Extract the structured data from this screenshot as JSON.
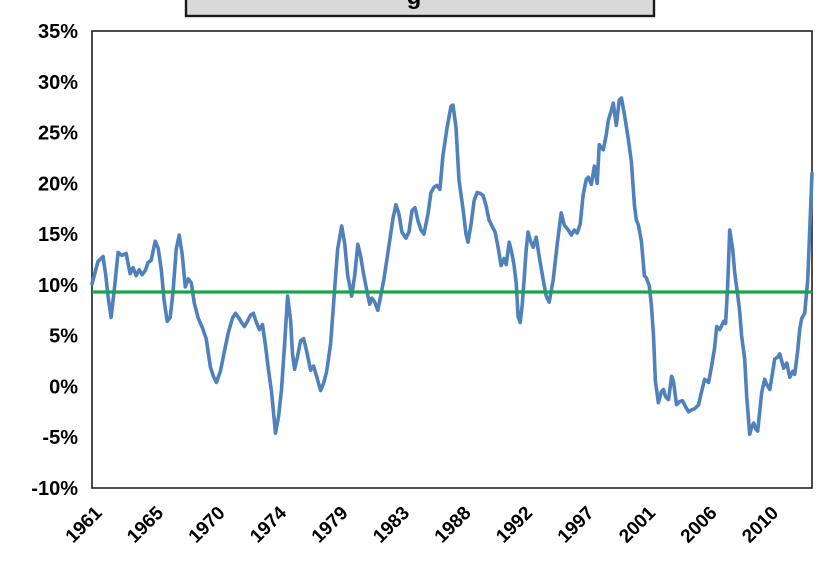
{
  "title_box": {
    "visible_text_fragment": "g",
    "fill": "#d9d9d9",
    "border_color": "#1a1a1a"
  },
  "colors": {
    "series_line": "#4f81bd",
    "mean_line": "#1aa44c",
    "plot_border": "#1f1f1f",
    "label_text": "#000000",
    "background": "#ffffff"
  },
  "chart_data": {
    "type": "line",
    "title": "",
    "xlabel": "",
    "ylabel": "",
    "grid": false,
    "legend": "none",
    "y_axis": {
      "tick_labels": [
        "35%",
        "30%",
        "25%",
        "20%",
        "15%",
        "10%",
        "5%",
        "0%",
        "-5%",
        "-10%"
      ],
      "min": -10,
      "max": 35,
      "step": 5,
      "unit": "%"
    },
    "x_axis": {
      "tick_labels": [
        "1961",
        "1965",
        "1970",
        "1974",
        "1979",
        "1983",
        "1988",
        "1992",
        "1997",
        "2001",
        "2006",
        "2010"
      ],
      "range": [
        1961,
        2013.5
      ],
      "label_rotation_deg": -45
    },
    "reference_line": {
      "name": "mean-line",
      "value": 9.3,
      "color": "#1aa44c"
    },
    "series": [
      {
        "name": "growth-rate-series",
        "color": "#4f81bd",
        "points": [
          [
            1961.0,
            10.1
          ],
          [
            1961.44,
            12.3
          ],
          [
            1961.8,
            12.8
          ],
          [
            1962.0,
            11.0
          ],
          [
            1962.17,
            8.9
          ],
          [
            1962.39,
            6.8
          ],
          [
            1962.65,
            9.8
          ],
          [
            1962.9,
            13.2
          ],
          [
            1963.19,
            12.9
          ],
          [
            1963.49,
            13.1
          ],
          [
            1963.78,
            11.1
          ],
          [
            1964.0,
            11.7
          ],
          [
            1964.22,
            10.9
          ],
          [
            1964.44,
            11.5
          ],
          [
            1964.66,
            11.0
          ],
          [
            1964.88,
            11.4
          ],
          [
            1965.09,
            12.2
          ],
          [
            1965.31,
            12.4
          ],
          [
            1965.61,
            14.3
          ],
          [
            1965.83,
            13.6
          ],
          [
            1966.05,
            11.5
          ],
          [
            1966.26,
            8.5
          ],
          [
            1966.48,
            6.4
          ],
          [
            1966.7,
            6.8
          ],
          [
            1966.92,
            9.5
          ],
          [
            1967.14,
            13.5
          ],
          [
            1967.36,
            14.9
          ],
          [
            1967.58,
            13.0
          ],
          [
            1967.8,
            9.8
          ],
          [
            1968.02,
            10.6
          ],
          [
            1968.24,
            10.2
          ],
          [
            1968.46,
            8.2
          ],
          [
            1968.75,
            6.7
          ],
          [
            1969.04,
            5.8
          ],
          [
            1969.33,
            4.7
          ],
          [
            1969.63,
            1.9
          ],
          [
            1969.85,
            1.0
          ],
          [
            1970.07,
            0.4
          ],
          [
            1970.36,
            1.5
          ],
          [
            1970.65,
            3.4
          ],
          [
            1970.94,
            5.3
          ],
          [
            1971.24,
            6.7
          ],
          [
            1971.46,
            7.2
          ],
          [
            1971.68,
            6.8
          ],
          [
            1971.9,
            6.3
          ],
          [
            1972.11,
            5.9
          ],
          [
            1972.33,
            6.4
          ],
          [
            1972.55,
            7.0
          ],
          [
            1972.77,
            7.2
          ],
          [
            1972.99,
            6.3
          ],
          [
            1973.21,
            5.6
          ],
          [
            1973.43,
            6.1
          ],
          [
            1973.65,
            4.0
          ],
          [
            1973.87,
            1.6
          ],
          [
            1974.09,
            -0.5
          ],
          [
            1974.38,
            -4.6
          ],
          [
            1974.6,
            -3.0
          ],
          [
            1974.82,
            -0.3
          ],
          [
            1975.04,
            4.0
          ],
          [
            1975.26,
            8.9
          ],
          [
            1975.48,
            6.5
          ],
          [
            1975.62,
            3.2
          ],
          [
            1975.77,
            1.7
          ],
          [
            1975.99,
            3.0
          ],
          [
            1976.21,
            4.5
          ],
          [
            1976.43,
            4.7
          ],
          [
            1976.65,
            3.5
          ],
          [
            1976.94,
            1.6
          ],
          [
            1977.16,
            2.0
          ],
          [
            1977.38,
            1.0
          ],
          [
            1977.67,
            -0.4
          ],
          [
            1977.89,
            0.3
          ],
          [
            1978.11,
            1.5
          ],
          [
            1978.4,
            4.2
          ],
          [
            1978.69,
            9.5
          ],
          [
            1978.91,
            13.5
          ],
          [
            1979.21,
            15.8
          ],
          [
            1979.43,
            14.0
          ],
          [
            1979.64,
            11.0
          ],
          [
            1979.94,
            8.9
          ],
          [
            1980.16,
            11.0
          ],
          [
            1980.38,
            14.0
          ],
          [
            1980.59,
            12.8
          ],
          [
            1980.81,
            11.0
          ],
          [
            1981.03,
            9.5
          ],
          [
            1981.25,
            8.1
          ],
          [
            1981.4,
            8.7
          ],
          [
            1981.62,
            8.3
          ],
          [
            1981.84,
            7.5
          ],
          [
            1981.99,
            8.5
          ],
          [
            1982.28,
            10.5
          ],
          [
            1982.5,
            12.5
          ],
          [
            1982.72,
            14.5
          ],
          [
            1982.94,
            16.5
          ],
          [
            1983.16,
            17.9
          ],
          [
            1983.38,
            17.0
          ],
          [
            1983.6,
            15.2
          ],
          [
            1983.89,
            14.6
          ],
          [
            1984.11,
            15.2
          ],
          [
            1984.33,
            17.3
          ],
          [
            1984.55,
            17.6
          ],
          [
            1984.77,
            16.3
          ],
          [
            1984.99,
            15.4
          ],
          [
            1985.2,
            15.0
          ],
          [
            1985.5,
            17.0
          ],
          [
            1985.72,
            19.1
          ],
          [
            1985.93,
            19.6
          ],
          [
            1986.15,
            19.8
          ],
          [
            1986.37,
            19.4
          ],
          [
            1986.59,
            22.7
          ],
          [
            1986.89,
            25.5
          ],
          [
            1987.18,
            27.6
          ],
          [
            1987.32,
            27.7
          ],
          [
            1987.54,
            25.5
          ],
          [
            1987.76,
            20.3
          ],
          [
            1988.05,
            17.5
          ],
          [
            1988.27,
            15.0
          ],
          [
            1988.42,
            14.2
          ],
          [
            1988.64,
            16.0
          ],
          [
            1988.86,
            18.3
          ],
          [
            1989.08,
            19.1
          ],
          [
            1989.3,
            19.0
          ],
          [
            1989.52,
            18.8
          ],
          [
            1989.74,
            17.8
          ],
          [
            1989.95,
            16.4
          ],
          [
            1990.17,
            15.8
          ],
          [
            1990.39,
            15.2
          ],
          [
            1990.61,
            13.7
          ],
          [
            1990.83,
            11.9
          ],
          [
            1991.05,
            12.6
          ],
          [
            1991.2,
            12.0
          ],
          [
            1991.42,
            14.2
          ],
          [
            1991.63,
            13.0
          ],
          [
            1991.78,
            11.9
          ],
          [
            1991.93,
            10.2
          ],
          [
            1992.07,
            6.9
          ],
          [
            1992.22,
            6.3
          ],
          [
            1992.37,
            8.0
          ],
          [
            1992.51,
            10.5
          ],
          [
            1992.66,
            13.5
          ],
          [
            1992.8,
            15.2
          ],
          [
            1992.95,
            14.4
          ],
          [
            1993.17,
            13.7
          ],
          [
            1993.39,
            14.7
          ],
          [
            1993.61,
            12.8
          ],
          [
            1993.9,
            10.5
          ],
          [
            1994.12,
            8.9
          ],
          [
            1994.34,
            8.3
          ],
          [
            1994.63,
            10.5
          ],
          [
            1994.92,
            14.0
          ],
          [
            1995.21,
            17.1
          ],
          [
            1995.43,
            15.9
          ],
          [
            1995.73,
            15.4
          ],
          [
            1995.95,
            14.9
          ],
          [
            1996.17,
            15.4
          ],
          [
            1996.38,
            15.1
          ],
          [
            1996.6,
            16.0
          ],
          [
            1996.82,
            18.9
          ],
          [
            1997.04,
            20.4
          ],
          [
            1997.19,
            20.6
          ],
          [
            1997.41,
            19.9
          ],
          [
            1997.63,
            21.7
          ],
          [
            1997.84,
            20.0
          ],
          [
            1997.99,
            23.8
          ],
          [
            1998.28,
            23.3
          ],
          [
            1998.5,
            24.8
          ],
          [
            1998.65,
            26.2
          ],
          [
            1998.87,
            27.2
          ],
          [
            1999.01,
            27.9
          ],
          [
            1999.23,
            25.7
          ],
          [
            1999.45,
            28.2
          ],
          [
            1999.6,
            28.4
          ],
          [
            1999.82,
            26.8
          ],
          [
            2000.11,
            24.3
          ],
          [
            2000.33,
            22.1
          ],
          [
            2000.55,
            17.9
          ],
          [
            2000.69,
            16.4
          ],
          [
            2000.84,
            15.9
          ],
          [
            2001.06,
            14.3
          ],
          [
            2001.28,
            10.9
          ],
          [
            2001.42,
            10.7
          ],
          [
            2001.64,
            9.9
          ],
          [
            2001.79,
            8.0
          ],
          [
            2001.94,
            5.0
          ],
          [
            2002.08,
            0.5
          ],
          [
            2002.3,
            -1.6
          ],
          [
            2002.52,
            -0.5
          ],
          [
            2002.67,
            -0.3
          ],
          [
            2002.82,
            -1.0
          ],
          [
            2003.04,
            -1.3
          ],
          [
            2003.26,
            1.0
          ],
          [
            2003.4,
            0.5
          ],
          [
            2003.62,
            -1.8
          ],
          [
            2003.84,
            -1.5
          ],
          [
            2004.06,
            -1.4
          ],
          [
            2004.28,
            -2.0
          ],
          [
            2004.5,
            -2.5
          ],
          [
            2004.72,
            -2.3
          ],
          [
            2004.94,
            -2.2
          ],
          [
            2005.23,
            -1.8
          ],
          [
            2005.45,
            -0.5
          ],
          [
            2005.67,
            0.7
          ],
          [
            2005.96,
            0.4
          ],
          [
            2006.18,
            2.0
          ],
          [
            2006.4,
            3.8
          ],
          [
            2006.55,
            5.9
          ],
          [
            2006.77,
            5.6
          ],
          [
            2007.06,
            6.4
          ],
          [
            2007.2,
            6.2
          ],
          [
            2007.35,
            10.0
          ],
          [
            2007.5,
            15.4
          ],
          [
            2007.72,
            13.5
          ],
          [
            2007.86,
            11.2
          ],
          [
            2008.08,
            9.0
          ],
          [
            2008.23,
            7.4
          ],
          [
            2008.37,
            5.0
          ],
          [
            2008.59,
            2.7
          ],
          [
            2008.74,
            -1.0
          ],
          [
            2008.96,
            -4.7
          ],
          [
            2009.1,
            -4.0
          ],
          [
            2009.25,
            -3.6
          ],
          [
            2009.4,
            -4.2
          ],
          [
            2009.54,
            -4.4
          ],
          [
            2009.69,
            -2.5
          ],
          [
            2009.83,
            -0.6
          ],
          [
            2010.05,
            0.7
          ],
          [
            2010.2,
            0.2
          ],
          [
            2010.42,
            -0.3
          ],
          [
            2010.64,
            1.5
          ],
          [
            2010.78,
            2.7
          ],
          [
            2011.0,
            2.9
          ],
          [
            2011.15,
            3.2
          ],
          [
            2011.29,
            2.5
          ],
          [
            2011.44,
            1.8
          ],
          [
            2011.66,
            2.3
          ],
          [
            2011.88,
            0.9
          ],
          [
            2012.1,
            1.5
          ],
          [
            2012.24,
            1.2
          ],
          [
            2012.46,
            3.5
          ],
          [
            2012.61,
            5.7
          ],
          [
            2012.75,
            6.7
          ],
          [
            2012.97,
            7.2
          ],
          [
            2013.19,
            10.5
          ],
          [
            2013.41,
            18.0
          ],
          [
            2013.5,
            21.0
          ]
        ]
      }
    ]
  }
}
